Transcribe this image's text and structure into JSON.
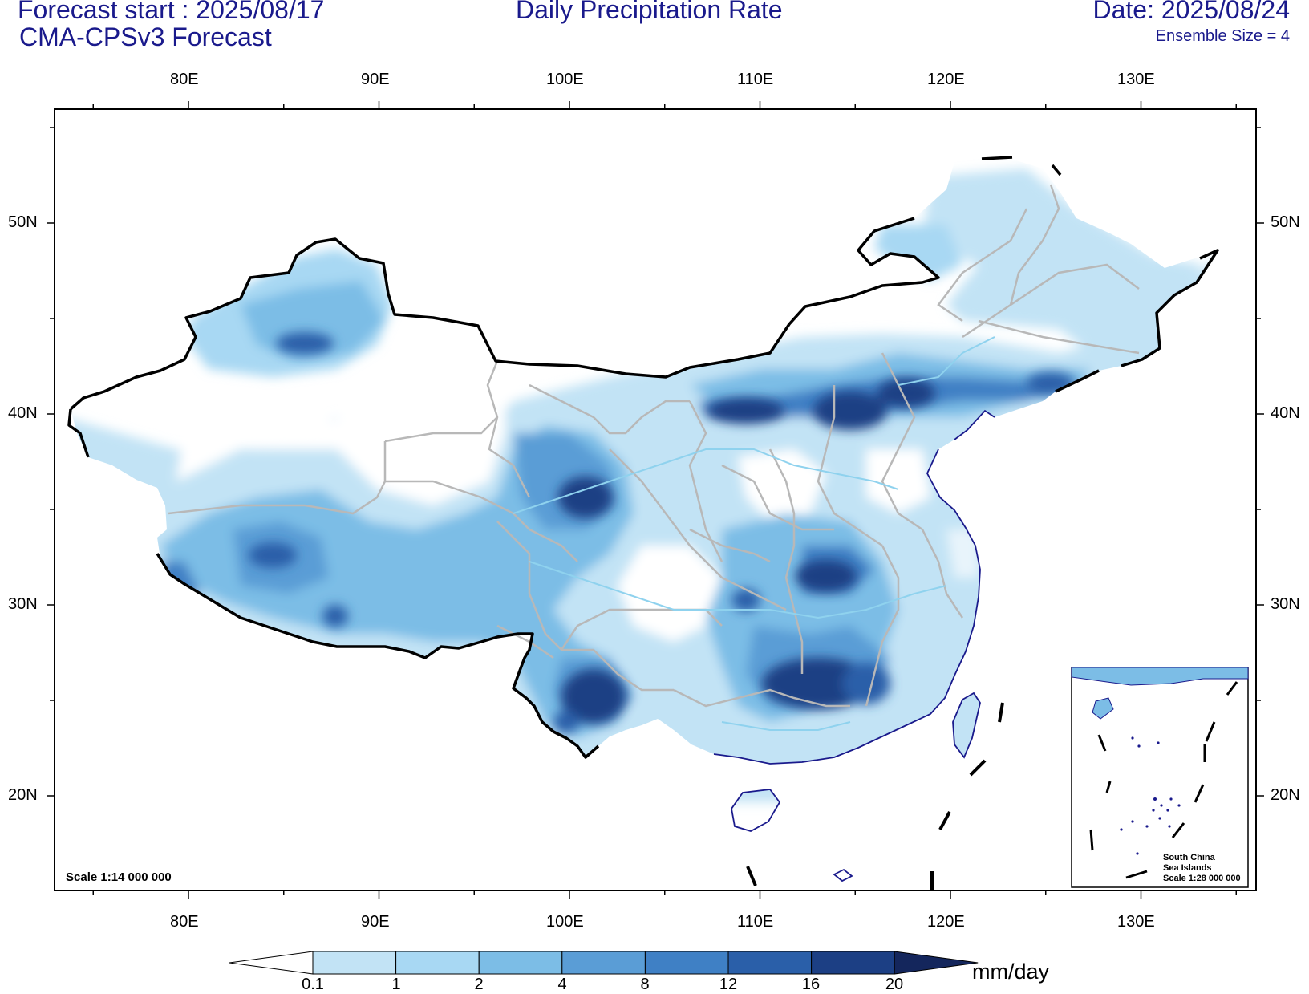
{
  "header": {
    "forecast_start": "Forecast start : 2025/08/17",
    "model": "CMA-CPSv3 Forecast",
    "title": "Daily Precipitation Rate",
    "date": "Date: 2025/08/24",
    "ensemble": "Ensemble Size = 4"
  },
  "axes": {
    "lon_labels": [
      "80E",
      "90E",
      "100E",
      "110E",
      "120E",
      "130E"
    ],
    "lat_labels": [
      "50N",
      "40N",
      "30N",
      "20N"
    ]
  },
  "scale_main": "Scale 1:14 000 000",
  "inset": {
    "line1": "South China",
    "line2": "Sea Islands",
    "line3": "Scale 1:28 000 000"
  },
  "colorbar": {
    "levels": [
      "0.1",
      "1",
      "2",
      "4",
      "8",
      "12",
      "16",
      "20"
    ],
    "unit": "mm/day",
    "colors": [
      "#c2e3f5",
      "#a8d8f3",
      "#7cbde6",
      "#5a9dd6",
      "#3f80c5",
      "#2a5fa9",
      "#1c3f84",
      "#14265c"
    ]
  }
}
